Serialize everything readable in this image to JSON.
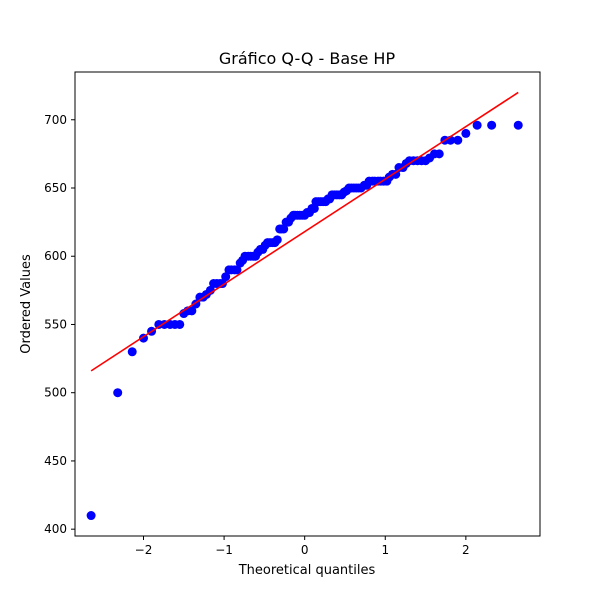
{
  "chart_data": {
    "type": "scatter",
    "title": "Gráfico Q-Q - Base HP",
    "xlabel": "Theoretical quantiles",
    "ylabel": "Ordered Values",
    "xlim": [
      -2.85,
      2.92
    ],
    "ylim": [
      395,
      735
    ],
    "xticks": [
      -2,
      -1,
      0,
      1,
      2
    ],
    "xtick_labels": [
      "−2",
      "−1",
      "0",
      "1",
      "2"
    ],
    "yticks": [
      400,
      450,
      500,
      550,
      600,
      650,
      700
    ],
    "ytick_labels": [
      "400",
      "450",
      "500",
      "550",
      "600",
      "650",
      "700"
    ],
    "grid": false,
    "marker_color": "#0000ff",
    "line_color": "#ff0000",
    "series": [
      {
        "type": "scatter",
        "x": [
          -2.65,
          -2.32,
          -2.14,
          -2.0,
          -1.9,
          -1.81,
          -1.74,
          -1.67,
          -1.61,
          -1.55,
          -1.5,
          -1.45,
          -1.4,
          -1.35,
          -1.3,
          -1.26,
          -1.22,
          -1.17,
          -1.13,
          -1.09,
          -1.05,
          -1.02,
          -0.98,
          -0.94,
          -0.91,
          -0.87,
          -0.84,
          -0.8,
          -0.77,
          -0.74,
          -0.7,
          -0.67,
          -0.64,
          -0.61,
          -0.58,
          -0.55,
          -0.52,
          -0.49,
          -0.46,
          -0.43,
          -0.4,
          -0.37,
          -0.34,
          -0.31,
          -0.29,
          -0.26,
          -0.23,
          -0.2,
          -0.17,
          -0.14,
          -0.12,
          -0.09,
          -0.06,
          -0.03,
          0.0,
          0.03,
          0.06,
          0.09,
          0.12,
          0.14,
          0.17,
          0.2,
          0.23,
          0.26,
          0.29,
          0.31,
          0.34,
          0.37,
          0.4,
          0.43,
          0.46,
          0.49,
          0.52,
          0.55,
          0.58,
          0.61,
          0.64,
          0.67,
          0.7,
          0.74,
          0.77,
          0.8,
          0.84,
          0.87,
          0.91,
          0.94,
          0.98,
          1.02,
          1.05,
          1.09,
          1.13,
          1.17,
          1.22,
          1.26,
          1.3,
          1.35,
          1.4,
          1.45,
          1.5,
          1.55,
          1.61,
          1.67,
          1.74,
          1.81,
          1.9,
          2.0,
          2.14,
          2.32,
          2.65
        ],
        "y": [
          410,
          500,
          530,
          540,
          545,
          550,
          550,
          550,
          550,
          550,
          558,
          560,
          560,
          565,
          570,
          570,
          572,
          575,
          580,
          580,
          580,
          580,
          585,
          590,
          590,
          590,
          590,
          595,
          597,
          600,
          600,
          600,
          600,
          600,
          603,
          605,
          605,
          608,
          610,
          610,
          610,
          610,
          612,
          620,
          620,
          620,
          625,
          625,
          628,
          630,
          630,
          630,
          630,
          630,
          630,
          632,
          632,
          635,
          635,
          640,
          640,
          640,
          640,
          640,
          642,
          642,
          645,
          645,
          645,
          645,
          645,
          647,
          648,
          650,
          650,
          650,
          650,
          650,
          650,
          652,
          652,
          655,
          655,
          655,
          655,
          655,
          655,
          655,
          658,
          660,
          660,
          665,
          665,
          668,
          670,
          670,
          670,
          670,
          670,
          672,
          675,
          675,
          685,
          685,
          685,
          690,
          696,
          696,
          696
        ]
      },
      {
        "type": "line",
        "x": [
          -2.65,
          2.65
        ],
        "y": [
          516,
          720
        ]
      }
    ]
  }
}
